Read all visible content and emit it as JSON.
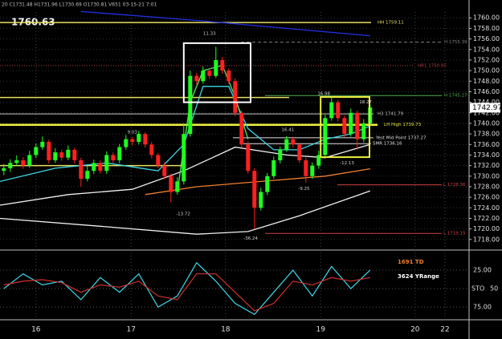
{
  "chart_data": [
    {
      "type": "candlestick",
      "header": "20 C1731.48 H1731.96 L1730.69 O1730.81 V651 03-15-21 7:01",
      "title": "1760.63",
      "last_price": {
        "value": 1742.97,
        "label": "1742.97"
      },
      "up_color": "#20ff20",
      "down_color": "#ff2020",
      "open": [
        1731,
        1731.5,
        1732.5,
        1733,
        1732,
        1734,
        1735.5,
        1736.5,
        1733,
        1734.5,
        1733.5,
        1735,
        1733,
        1729.5,
        1731,
        1732.5,
        1731,
        1734,
        1733,
        1735.5,
        1737,
        1736.5,
        1738,
        1736,
        1734,
        1732,
        1730,
        1727,
        1729,
        1738,
        1749,
        1748,
        1750,
        1749,
        1752,
        1750,
        1748,
        1742,
        1736,
        1731,
        1724,
        1727,
        1730,
        1733,
        1735,
        1737,
        1736,
        1733,
        1730,
        1732,
        1734,
        1741,
        1744,
        1741,
        1738,
        1742,
        1737,
        1740
      ],
      "high": [
        1732.3,
        1733.2,
        1733.9,
        1733.6,
        1734.8,
        1736.2,
        1737.5,
        1736.9,
        1735.3,
        1735,
        1735.8,
        1735.4,
        1733.5,
        1731.9,
        1733.1,
        1733,
        1734.7,
        1734.5,
        1736.1,
        1737.8,
        1737.4,
        1738.6,
        1738.3,
        1736.5,
        1734.4,
        1732.6,
        1730.5,
        1729.8,
        1740,
        1750,
        1749.6,
        1750.8,
        1750.5,
        1754.5,
        1752.6,
        1750.4,
        1748.5,
        1742.4,
        1736.6,
        1731.5,
        1727.8,
        1730.6,
        1733.7,
        1735.6,
        1737.6,
        1737.5,
        1736.4,
        1733.5,
        1732.6,
        1734.8,
        1741.6,
        1745,
        1744.4,
        1741.5,
        1742.8,
        1742.4,
        1740.8,
        1743.5
      ],
      "low": [
        1730.2,
        1730.8,
        1731.9,
        1731.4,
        1731.6,
        1733.4,
        1735,
        1732.4,
        1732.5,
        1732.9,
        1733,
        1732.4,
        1728,
        1729,
        1730.4,
        1730.5,
        1730.4,
        1732.5,
        1732.4,
        1735,
        1735.8,
        1736,
        1735.4,
        1733.4,
        1731.5,
        1729.4,
        1725,
        1726.5,
        1728.4,
        1737.5,
        1747.4,
        1747.5,
        1748.4,
        1748.6,
        1749.4,
        1747.5,
        1741.4,
        1735.4,
        1730.5,
        1720,
        1723.5,
        1726.4,
        1729.5,
        1732.4,
        1734.6,
        1735.4,
        1732.5,
        1728.8,
        1729.5,
        1731.4,
        1733.5,
        1740.5,
        1740.4,
        1737.4,
        1737.5,
        1735,
        1736.4,
        1739.5
      ],
      "close": [
        1731.5,
        1732.5,
        1733,
        1732,
        1734,
        1735.5,
        1736.5,
        1733,
        1734.5,
        1733.5,
        1735,
        1733,
        1729.5,
        1731,
        1732.5,
        1731,
        1734,
        1733,
        1735.5,
        1737,
        1736.5,
        1738,
        1736,
        1734,
        1732,
        1730,
        1727,
        1729,
        1738,
        1749,
        1748,
        1750,
        1749,
        1752,
        1750,
        1748,
        1742,
        1736,
        1731,
        1724,
        1727,
        1730,
        1733,
        1735,
        1737,
        1736,
        1733,
        1730,
        1732,
        1734,
        1741,
        1744,
        1741,
        1738,
        1742,
        1737,
        1740,
        1743
      ],
      "xlim": [
        -0.6,
        72.15
      ],
      "xticks": [
        {
          "value": 5,
          "label": "16"
        },
        {
          "value": 19.8,
          "label": "17"
        },
        {
          "value": 34.5,
          "label": "18"
        },
        {
          "value": 49.3,
          "label": "19"
        },
        {
          "value": 64,
          "label": "20"
        },
        {
          "value": 68.65,
          "label": "22"
        }
      ],
      "ylim": [
        1716.3,
        1761.1
      ],
      "yticks": [
        {
          "value": 1718,
          "label": "1718.00"
        },
        {
          "value": 1720,
          "label": "1720.00"
        },
        {
          "value": 1722,
          "label": "1722.00"
        },
        {
          "value": 1724,
          "label": "1724.00"
        },
        {
          "value": 1726,
          "label": "1726.00"
        },
        {
          "value": 1728,
          "label": "1728.00"
        },
        {
          "value": 1730,
          "label": "1730.00"
        },
        {
          "value": 1732,
          "label": "1732.00"
        },
        {
          "value": 1734,
          "label": "1734.00"
        },
        {
          "value": 1736,
          "label": "1736.00"
        },
        {
          "value": 1738,
          "label": "1738.00"
        },
        {
          "value": 1740,
          "label": "1740.00"
        },
        {
          "value": 1742,
          "label": "1742.00"
        },
        {
          "value": 1744,
          "label": "1744.00"
        },
        {
          "value": 1746,
          "label": "1746.00"
        },
        {
          "value": 1748,
          "label": "1748.00"
        },
        {
          "value": 1750,
          "label": "1750.00"
        },
        {
          "value": 1752,
          "label": "1752.00"
        },
        {
          "value": 1754,
          "label": "1754.00"
        },
        {
          "value": 1756,
          "label": "1756.00"
        },
        {
          "value": 1758,
          "label": "1758.00"
        },
        {
          "value": 1760,
          "label": "1760.00"
        }
      ],
      "grid": true,
      "series": [
        {
          "color": "#2030e0",
          "x": [
            12,
            30,
            57
          ],
          "values": [
            1761.2,
            1759.5,
            1756.6
          ]
        },
        {
          "color": "#f08030",
          "x": [
            22,
            30,
            40,
            50,
            57
          ],
          "values": [
            1726.5,
            1728,
            1729,
            1730,
            1731.4
          ]
        },
        {
          "color": "#f0f0f0",
          "x": [
            -0.6,
            10,
            20,
            28,
            36,
            44,
            50,
            57
          ],
          "values": [
            1724.5,
            1726.5,
            1727.5,
            1731,
            1735.5,
            1734,
            1733.5,
            1736
          ]
        },
        {
          "color": "#f0f0f0",
          "x": [
            -0.6,
            15,
            30,
            38,
            46,
            57
          ],
          "values": [
            1722,
            1720.5,
            1719,
            1719.5,
            1722.5,
            1727.2
          ]
        },
        {
          "color": "#40d8e8",
          "x": [
            -0.6,
            8,
            16,
            24,
            28,
            31,
            35,
            38,
            42,
            46,
            50,
            54,
            57
          ],
          "values": [
            1729,
            1731.5,
            1732.5,
            1731,
            1736,
            1747,
            1747,
            1739,
            1735,
            1735,
            1737,
            1738,
            1739.5
          ]
        },
        {
          "color": "#60e060",
          "x": [
            27,
            29,
            31,
            34,
            36,
            38
          ],
          "values": [
            1727,
            1744,
            1750,
            1751,
            1745,
            1737
          ]
        }
      ],
      "levels": [
        {
          "value": 1759.11,
          "label": "HH 1759.11",
          "color": "#e8e060",
          "style": "solid"
        },
        {
          "value": 1755.39,
          "label": "H 1755.39",
          "color": "#808080",
          "style": "dashed"
        },
        {
          "value": 1750.95,
          "label": "HR1 1750.95",
          "color": "#b04040",
          "style": "dotted"
        },
        {
          "value": 1745.27,
          "label": "H 1745.27",
          "color": "#50b050",
          "style": "solid"
        },
        {
          "value": 1741.79,
          "label": "H3 1741.79",
          "color": "#c8c8c8",
          "style": "solid"
        },
        {
          "value": 1739.73,
          "label": "LH High 1739.73",
          "color": "#f0f040",
          "style": "solid"
        },
        {
          "value": 1737.27,
          "label": "Yest Mid Point 1737.27",
          "color": "#e0e0e0",
          "style": "solid"
        },
        {
          "value": 1736.16,
          "label": "SMR 1736.16",
          "color": "#e0e0e0",
          "style": "solid"
        },
        {
          "value": 1728.36,
          "label": "L 1728.36",
          "color": "#d04040",
          "style": "solid"
        },
        {
          "value": 1719.15,
          "label": "L 1719.15",
          "color": "#d04040",
          "style": "solid"
        },
        {
          "value": 1744.9,
          "color": "#e8e060",
          "style": "solid"
        },
        {
          "value": 1732,
          "color": "#e8e060",
          "style": "solid"
        }
      ],
      "boxes": [
        {
          "color": "#ffffff",
          "x": [
            28,
            38.4
          ],
          "y": [
            1744,
            1755.2
          ]
        },
        {
          "color": "#f0f040",
          "x": [
            49.3,
            56.9
          ],
          "y": [
            1733.6,
            1745
          ]
        }
      ],
      "annotations": [
        {
          "text": "11.33",
          "x": 32,
          "y": 1757
        },
        {
          "text": "9.03",
          "x": 20,
          "y": 1738.3
        },
        {
          "text": "16.98",
          "x": 49.8,
          "y": 1745.6
        },
        {
          "text": "16.41",
          "x": 44.2,
          "y": 1738.8
        },
        {
          "text": "18.27",
          "x": 56.3,
          "y": 1744
        },
        {
          "text": "-13.72",
          "x": 27.9,
          "y": 1722.8
        },
        {
          "text": "-36.24",
          "x": 38.4,
          "y": 1718.2
        },
        {
          "text": "-9.25",
          "x": 46.7,
          "y": 1727.6
        },
        {
          "text": "-12.13",
          "x": 53.4,
          "y": 1732.5
        }
      ]
    },
    {
      "type": "line",
      "indicator": "STO",
      "labels": [
        "1691 TD",
        "3624 YRange"
      ],
      "label_colors": [
        "#f08030",
        "#ffffff"
      ],
      "xlim": [
        -0.6,
        72.15
      ],
      "ylim": [
        0,
        90
      ],
      "y_inverted": true,
      "yticks": [
        {
          "value": 25,
          "label": "25.00"
        },
        50,
        {
          "value": 75,
          "label": "75.00"
        }
      ],
      "series": [
        {
          "color": "#40d8e8",
          "x": [
            0,
            3,
            6,
            9,
            12,
            15,
            18,
            21,
            24,
            27,
            30,
            33,
            36,
            39,
            42,
            45,
            48,
            51,
            54,
            57
          ],
          "values": [
            50,
            30,
            45,
            40,
            65,
            35,
            55,
            30,
            75,
            60,
            15,
            40,
            70,
            85,
            55,
            25,
            60,
            20,
            50,
            25
          ]
        },
        {
          "color": "#d03030",
          "x": [
            0,
            3,
            6,
            9,
            12,
            15,
            18,
            21,
            24,
            27,
            30,
            33,
            36,
            39,
            42,
            45,
            48,
            51,
            54,
            57
          ],
          "values": [
            45,
            40,
            38,
            42,
            55,
            45,
            48,
            40,
            60,
            65,
            30,
            30,
            55,
            80,
            70,
            40,
            45,
            35,
            40,
            35
          ]
        }
      ]
    }
  ]
}
